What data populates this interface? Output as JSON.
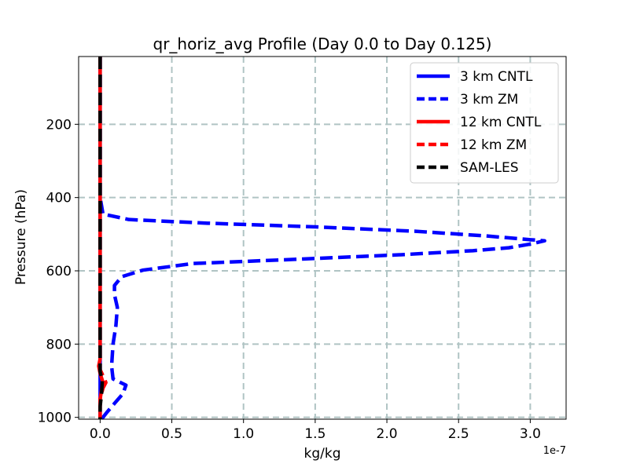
{
  "chart_data": {
    "type": "line",
    "title": "qr_horiz_avg Profile (Day 0.0 to Day 0.125)",
    "xlabel": "kg/kg",
    "ylabel": "Pressure (hPa)",
    "x_offset_text": "1e-7",
    "x_scale_factor": 1e-07,
    "xlim": [
      -0.15,
      3.25
    ],
    "ylim": [
      1005,
      15
    ],
    "y_inverted": true,
    "xticks": [
      0.0,
      0.5,
      1.0,
      1.5,
      2.0,
      2.5,
      3.0
    ],
    "xtick_labels": [
      "0.0",
      "0.5",
      "1.0",
      "1.5",
      "2.0",
      "2.5",
      "3.0"
    ],
    "yticks": [
      200,
      400,
      600,
      800,
      1000
    ],
    "ytick_labels": [
      "200",
      "400",
      "600",
      "800",
      "1000"
    ],
    "grid": true,
    "legend_position": "top-right",
    "series": [
      {
        "name": "3 km CNTL",
        "color": "#0000ff",
        "style": "solid",
        "points": [
          [
            0.0,
            15
          ],
          [
            0.0,
            400
          ],
          [
            0.0,
            440
          ],
          [
            0.0,
            1005
          ]
        ]
      },
      {
        "name": "3 km ZM",
        "color": "#0000ff",
        "style": "dashed",
        "points": [
          [
            0.0,
            15
          ],
          [
            0.0,
            400
          ],
          [
            0.02,
            445
          ],
          [
            0.2,
            460
          ],
          [
            0.75,
            470
          ],
          [
            1.5,
            480
          ],
          [
            2.2,
            492
          ],
          [
            2.7,
            505
          ],
          [
            3.0,
            515
          ],
          [
            3.1,
            518
          ],
          [
            3.0,
            527
          ],
          [
            2.85,
            537
          ],
          [
            2.6,
            545
          ],
          [
            2.1,
            556
          ],
          [
            1.4,
            568
          ],
          [
            0.65,
            580
          ],
          [
            0.3,
            598
          ],
          [
            0.15,
            616
          ],
          [
            0.1,
            640
          ],
          [
            0.1,
            665
          ],
          [
            0.12,
            700
          ],
          [
            0.11,
            750
          ],
          [
            0.09,
            800
          ],
          [
            0.08,
            860
          ],
          [
            0.09,
            895
          ],
          [
            0.18,
            912
          ],
          [
            0.16,
            935
          ],
          [
            0.1,
            962
          ],
          [
            0.05,
            985
          ],
          [
            0.02,
            1000
          ],
          [
            0.0,
            1005
          ]
        ]
      },
      {
        "name": "12 km CNTL",
        "color": "#ff0000",
        "style": "solid",
        "points": [
          [
            0.0,
            15
          ],
          [
            0.0,
            400
          ],
          [
            0.0,
            840
          ],
          [
            -0.01,
            860
          ],
          [
            0.0,
            880
          ],
          [
            0.02,
            905
          ],
          [
            0.01,
            925
          ],
          [
            0.0,
            950
          ],
          [
            0.0,
            1005
          ]
        ]
      },
      {
        "name": "12 km ZM",
        "color": "#ff0000",
        "style": "dashed",
        "points": [
          [
            0.0,
            15
          ],
          [
            0.0,
            400
          ],
          [
            0.0,
            840
          ],
          [
            0.0,
            870
          ],
          [
            0.03,
            895
          ],
          [
            0.04,
            905
          ],
          [
            0.02,
            920
          ],
          [
            0.0,
            950
          ],
          [
            0.0,
            1005
          ]
        ]
      },
      {
        "name": "SAM-LES",
        "color": "#000000",
        "style": "dashed",
        "points": [
          [
            0.0,
            15
          ],
          [
            0.0,
            400
          ],
          [
            0.0,
            850
          ],
          [
            0.0,
            875
          ],
          [
            0.015,
            900
          ],
          [
            0.01,
            935
          ],
          [
            0.0,
            970
          ],
          [
            0.0,
            1005
          ]
        ]
      }
    ]
  }
}
